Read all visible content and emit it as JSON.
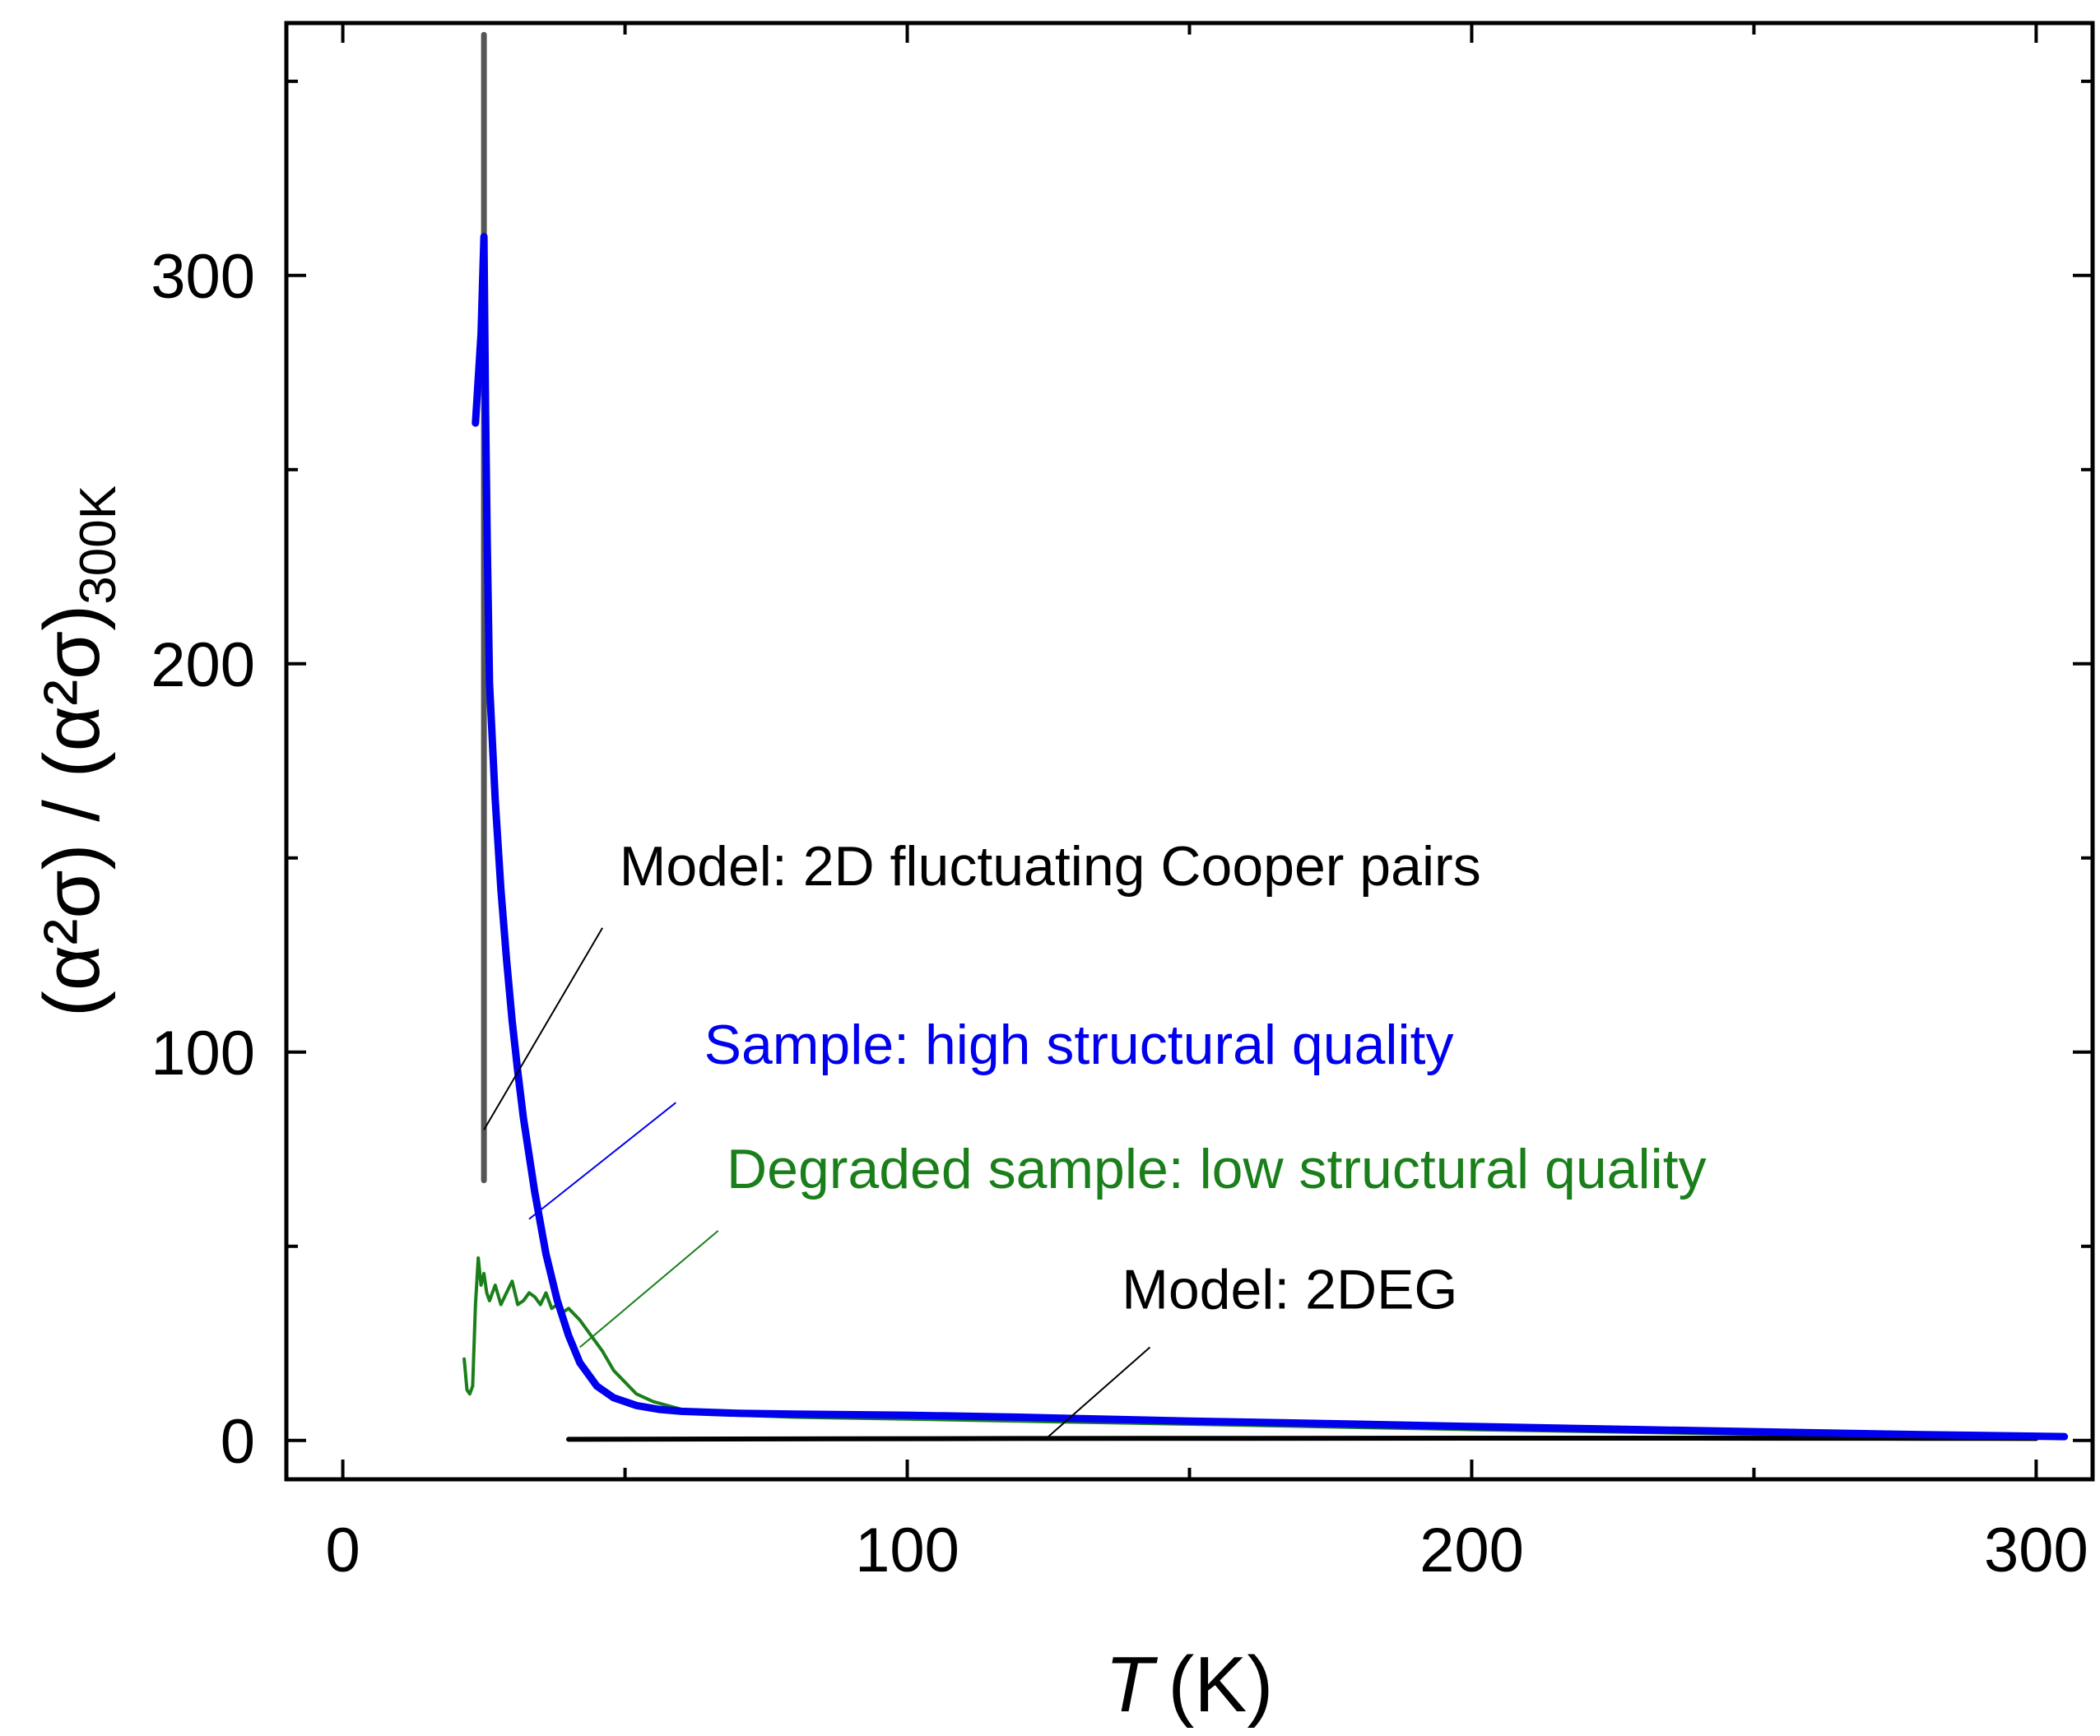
{
  "chart_data": {
    "type": "line",
    "title": "",
    "xlabel": {
      "var": "T",
      "unit": "(K)"
    },
    "ylabel": {
      "num": "(α²σ)",
      "sep": " / ",
      "den": "(α²σ)",
      "sub": "300K"
    },
    "xlim": [
      -10,
      310
    ],
    "ylim": [
      -10,
      365
    ],
    "x_ticks": [
      0,
      100,
      200,
      300
    ],
    "y_ticks": [
      0,
      100,
      200,
      300
    ],
    "x_minor_ticks": [
      50,
      150,
      250
    ],
    "y_minor_ticks": [
      50,
      150,
      250,
      350
    ],
    "grid": false,
    "series": [
      {
        "name": "Model: 2D fluctuating Cooper pairs",
        "color": "#555555",
        "x": [
          25,
          25
        ],
        "y": [
          362,
          67
        ]
      },
      {
        "name": "Sample: high structural quality",
        "color": "#0000ee",
        "x": [
          23.5,
          24.5,
          25,
          25.3,
          25.6,
          26,
          27,
          28,
          29,
          30,
          31,
          32,
          34,
          36,
          38,
          40,
          42,
          45,
          48,
          52,
          56,
          60,
          70,
          80,
          100,
          120,
          150,
          180,
          200,
          230,
          260,
          280,
          300,
          305
        ],
        "y": [
          262,
          285,
          310,
          265,
          230,
          195,
          165,
          142,
          124,
          108,
          95,
          83,
          64,
          48,
          36,
          27,
          20,
          14,
          11,
          9,
          8,
          7.5,
          7,
          6.8,
          6.5,
          6,
          5,
          4.2,
          3.6,
          2.8,
          2,
          1.5,
          1.1,
          1
        ]
      },
      {
        "name": "Degraded sample: low structural quality",
        "color": "#1a7f1a",
        "x": [
          21.5,
          22,
          22.5,
          23,
          23.5,
          24,
          24.5,
          25,
          25.5,
          26,
          27,
          28,
          29,
          30,
          31,
          32,
          33,
          34,
          35,
          36,
          37,
          38,
          39,
          40,
          42,
          44,
          46,
          48,
          50,
          52,
          55,
          60,
          70,
          80,
          100,
          150,
          200,
          250,
          300
        ],
        "y": [
          21,
          13,
          12,
          14,
          35,
          47,
          40,
          43,
          38,
          36,
          40,
          35,
          38,
          41,
          35,
          36,
          38,
          37,
          35,
          38,
          34,
          35,
          33,
          34,
          31,
          27,
          23,
          18,
          15,
          12,
          10,
          8,
          6.5,
          6,
          5.5,
          4.2,
          2.8,
          1.6,
          1
        ]
      },
      {
        "name": "Model: 2DEG",
        "color": "#000000",
        "x": [
          40,
          80,
          120,
          160,
          200,
          240,
          280,
          300
        ],
        "y": [
          0.3,
          0.4,
          0.5,
          0.55,
          0.6,
          0.6,
          0.55,
          0.5
        ]
      }
    ],
    "annotations": [
      {
        "text": "Model: 2D fluctuating Cooper pairs",
        "color": "#000000",
        "x": 49,
        "y": 143,
        "pointer_from": [
          46,
          132
        ],
        "pointer_to": [
          25,
          80
        ]
      },
      {
        "text": "Sample: high structural quality",
        "color": "#0000ee",
        "x": 64,
        "y": 97,
        "pointer_from": [
          59,
          87
        ],
        "pointer_to": [
          33,
          57
        ]
      },
      {
        "text": "Degraded sample: low structural quality",
        "color": "#1a7f1a",
        "x": 68,
        "y": 65,
        "pointer_from": [
          66.5,
          54
        ],
        "pointer_to": [
          42,
          24
        ]
      },
      {
        "text": "Model: 2DEG",
        "color": "#000000",
        "x": 138,
        "y": 34,
        "pointer_from": [
          143,
          24
        ],
        "pointer_to": [
          125,
          1
        ]
      }
    ]
  }
}
